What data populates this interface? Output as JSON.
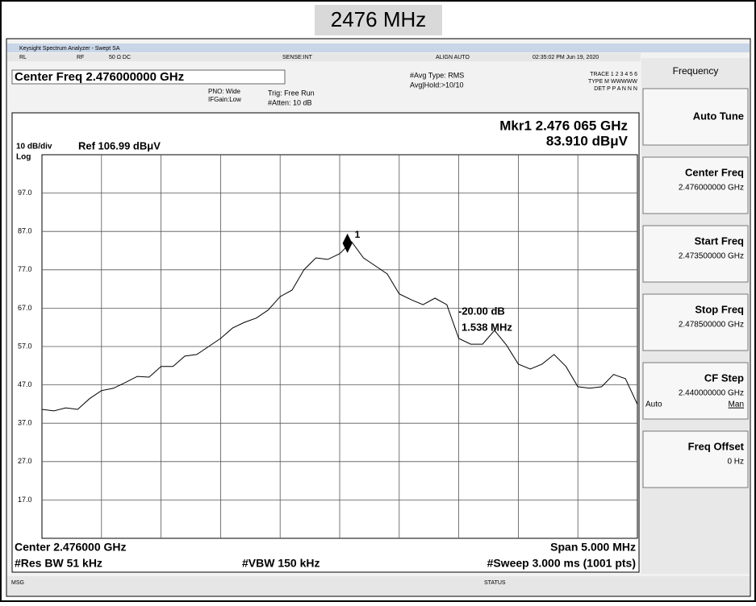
{
  "header": {
    "title": "2476 MHz"
  },
  "window": {
    "title": "Keysight Spectrum Analyzer - Swept SA"
  },
  "status_bar": [
    "RL",
    "RF",
    "50 Ω DC",
    "SENSE:INT",
    "ALIGN AUTO",
    "02:35:02 PM Jun 19, 2020"
  ],
  "settings": {
    "center_freq": "Center Freq 2.476000000 GHz",
    "pno": "PNO: Wide",
    "ifgain": "IFGain:Low",
    "trig": "Trig: Free Run",
    "atten": "#Atten: 10 dB",
    "avg_type": "#Avg Type: RMS",
    "avg_hold": "Avg|Hold:>10/10",
    "trace": "TRACE 1 2 3 4 5 6",
    "trace_type": "TYPE M WWWWW",
    "det": "DET P P A N N N"
  },
  "chart_data": {
    "type": "line",
    "scale": "10 dB/div",
    "ref": "Ref 106.99 dBμV",
    "scale_type": "Log",
    "marker_freq": "Mkr1 2.476 065 GHz",
    "marker_level": "83.910 dBμV",
    "marker": {
      "label": "1",
      "x": 2.476065,
      "value": 83.91
    },
    "delta_level": "-20.00 dB",
    "delta_freq": "1.538 MHz",
    "center": "Center 2.476000 GHz",
    "span": "Span 5.000 MHz",
    "rbw": "#Res BW 51 kHz",
    "vbw": "#VBW 150 kHz",
    "sweep": "#Sweep 3.000 ms (1001 pts)",
    "xlim": [
      2.4735,
      2.4785
    ],
    "ylim": [
      6.99,
      106.99
    ],
    "yticks": [
      {
        "value": 96.99,
        "label": "97.0"
      },
      {
        "value": 86.99,
        "label": "87.0"
      },
      {
        "value": 76.99,
        "label": "77.0"
      },
      {
        "value": 66.99,
        "label": "67.0"
      },
      {
        "value": 56.99,
        "label": "57.0"
      },
      {
        "value": 46.99,
        "label": "47.0"
      },
      {
        "value": 36.99,
        "label": "37.0"
      },
      {
        "value": 26.99,
        "label": "27.0"
      },
      {
        "value": 16.99,
        "label": "17.0"
      }
    ],
    "grid": true,
    "color": "#000000",
    "x": [
      2.4735,
      2.4736,
      2.4737,
      2.4738,
      2.4739,
      2.474,
      2.4741,
      2.4742,
      2.4743,
      2.4744,
      2.4745,
      2.4746,
      2.4747,
      2.4748,
      2.4749,
      2.475,
      2.4751,
      2.4752,
      2.4753,
      2.4754,
      2.4755,
      2.4756,
      2.4757,
      2.4758,
      2.4759,
      2.476,
      2.4761,
      2.4762,
      2.4763,
      2.4764,
      2.4765,
      2.4766,
      2.4767,
      2.4768,
      2.4769,
      2.477,
      2.4771,
      2.4772,
      2.4773,
      2.4774,
      2.4775,
      2.4776,
      2.4777,
      2.4778,
      2.4779,
      2.478,
      2.4781,
      2.4782,
      2.4783,
      2.4784,
      2.4785
    ],
    "values": [
      40.6,
      40.2,
      41.0,
      40.6,
      43.4,
      45.5,
      46.1,
      47.6,
      49.2,
      49.0,
      51.8,
      51.8,
      54.5,
      54.9,
      57.0,
      59.1,
      61.8,
      63.3,
      64.4,
      66.5,
      70.0,
      71.7,
      77.0,
      80.1,
      79.7,
      81.2,
      84.3,
      80.1,
      78.0,
      75.9,
      70.7,
      69.2,
      67.9,
      69.6,
      67.9,
      59.1,
      57.6,
      57.6,
      61.2,
      57.4,
      52.4,
      51.1,
      52.4,
      54.9,
      51.8,
      46.5,
      46.1,
      46.5,
      49.7,
      48.6,
      41.9
    ]
  },
  "message_bar": {
    "msg": "MSG",
    "status": "STATUS"
  },
  "softkeys": {
    "menu": "Frequency",
    "keys": [
      {
        "label": "Auto Tune"
      },
      {
        "label": "Center Freq",
        "value": "2.476000000 GHz"
      },
      {
        "label": "Start Freq",
        "value": "2.473500000 GHz"
      },
      {
        "label": "Stop Freq",
        "value": "2.478500000 GHz"
      },
      {
        "label": "CF Step",
        "value": "2.440000000 GHz",
        "auto": "Auto",
        "man": "Man"
      },
      {
        "label": "Freq Offset",
        "value": "0 Hz"
      }
    ]
  }
}
